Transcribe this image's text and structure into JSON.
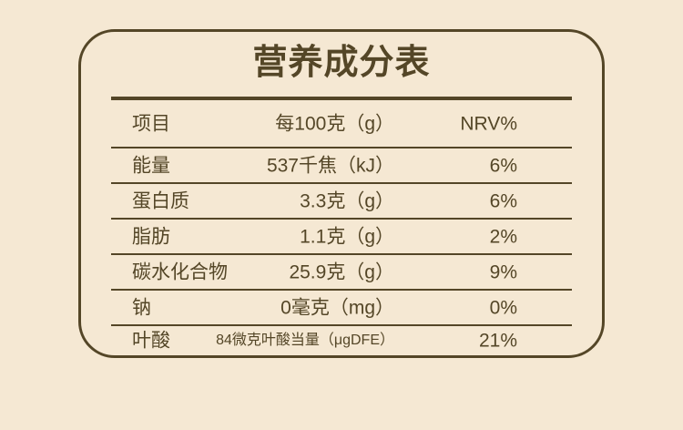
{
  "panel": {
    "title": "营养成分表",
    "colors": {
      "background": "#f5e8d3",
      "foreground": "#544627"
    }
  },
  "table": {
    "header": {
      "item": "项目",
      "amount": "每100克（g）",
      "nrv": "NRV%"
    },
    "rows": [
      {
        "label": "能量",
        "amount": "537千焦（kJ）",
        "nrv": "6%"
      },
      {
        "label": "蛋白质",
        "amount": "3.3克（g）",
        "nrv": "6%"
      },
      {
        "label": "脂肪",
        "amount": "1.1克（g）",
        "nrv": "2%"
      },
      {
        "label": "碳水化合物",
        "amount": "25.9克（g）",
        "nrv": "9%"
      },
      {
        "label": "钠",
        "amount": "0毫克（mg）",
        "nrv": "0%"
      },
      {
        "label": "叶酸",
        "amount": "84微克叶酸当量（μgDFE）",
        "nrv": "21%"
      }
    ]
  }
}
